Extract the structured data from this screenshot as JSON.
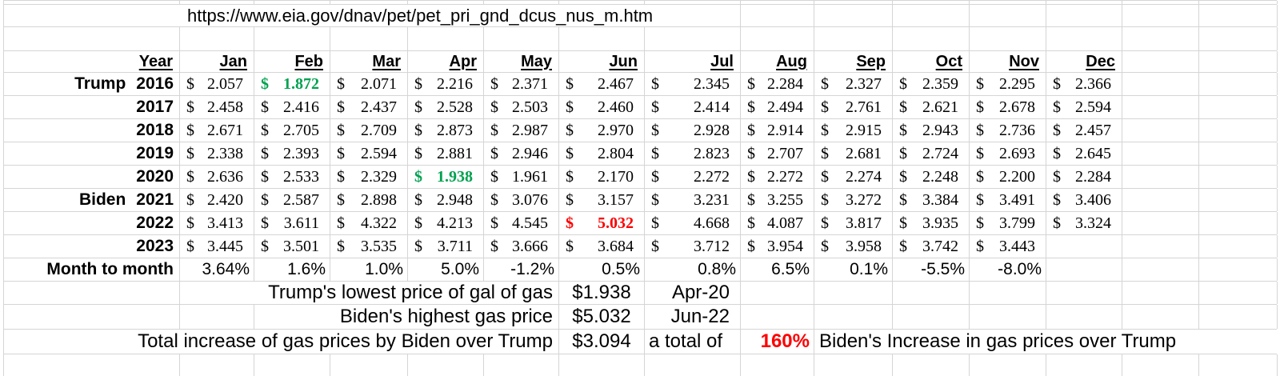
{
  "source_url": "https://www.eia.gov/dnav/pet/pet_pri_gnd_dcus_nus_m.htm",
  "colors": {
    "green": "#00A14F",
    "red": "#FD0000",
    "grid": "#D5D5D5"
  },
  "table": {
    "year_header": "Year",
    "currency_symbol": "$",
    "months": [
      "Jan",
      "Feb",
      "Mar",
      "Apr",
      "May",
      "Jun",
      "Jul",
      "Aug",
      "Sep",
      "Oct",
      "Nov",
      "Dec"
    ],
    "rows": [
      {
        "prefix": "Trump",
        "year": "2016",
        "values": [
          "2.057",
          "1.872",
          "2.071",
          "2.216",
          "2.371",
          "2.467",
          "2.345",
          "2.284",
          "2.327",
          "2.359",
          "2.295",
          "2.366"
        ],
        "highlight_index": 1,
        "highlight": "green"
      },
      {
        "prefix": "",
        "year": "2017",
        "values": [
          "2.458",
          "2.416",
          "2.437",
          "2.528",
          "2.503",
          "2.460",
          "2.414",
          "2.494",
          "2.761",
          "2.621",
          "2.678",
          "2.594"
        ]
      },
      {
        "prefix": "",
        "year": "2018",
        "values": [
          "2.671",
          "2.705",
          "2.709",
          "2.873",
          "2.987",
          "2.970",
          "2.928",
          "2.914",
          "2.915",
          "2.943",
          "2.736",
          "2.457"
        ]
      },
      {
        "prefix": "",
        "year": "2019",
        "values": [
          "2.338",
          "2.393",
          "2.594",
          "2.881",
          "2.946",
          "2.804",
          "2.823",
          "2.707",
          "2.681",
          "2.724",
          "2.693",
          "2.645"
        ]
      },
      {
        "prefix": "",
        "year": "2020",
        "values": [
          "2.636",
          "2.533",
          "2.329",
          "1.938",
          "1.961",
          "2.170",
          "2.272",
          "2.272",
          "2.274",
          "2.248",
          "2.200",
          "2.284"
        ],
        "highlight_index": 3,
        "highlight": "green"
      },
      {
        "prefix": "Biden",
        "year": "2021",
        "values": [
          "2.420",
          "2.587",
          "2.898",
          "2.948",
          "3.076",
          "3.157",
          "3.231",
          "3.255",
          "3.272",
          "3.384",
          "3.491",
          "3.406"
        ]
      },
      {
        "prefix": "",
        "year": "2022",
        "values": [
          "3.413",
          "3.611",
          "4.322",
          "4.213",
          "4.545",
          "5.032",
          "4.668",
          "4.087",
          "3.817",
          "3.935",
          "3.799",
          "3.324"
        ],
        "highlight_index": 5,
        "highlight": "red"
      },
      {
        "prefix": "",
        "year": "2023",
        "values": [
          "3.445",
          "3.501",
          "3.535",
          "3.711",
          "3.666",
          "3.684",
          "3.712",
          "3.954",
          "3.958",
          "3.742",
          "3.443",
          ""
        ]
      }
    ],
    "pct_row": {
      "label": "Month to month",
      "values": [
        "3.64%",
        "1.6%",
        "1.0%",
        "5.0%",
        "-1.2%",
        "0.5%",
        "0.8%",
        "6.5%",
        "0.1%",
        "-5.5%",
        "-8.0%",
        ""
      ]
    }
  },
  "summary": {
    "trump_lowest": {
      "label": "Trump's lowest price of gal of gas",
      "value": "$1.938",
      "date": "Apr-20"
    },
    "biden_highest": {
      "label": "Biden's highest gas price",
      "value": "$5.032",
      "date": "Jun-22"
    },
    "total_increase": {
      "label": "Total increase of gas prices by Biden over Trump",
      "value": "$3.094",
      "note": "a total of",
      "pct": "160%",
      "tail": "Biden's Increase in gas prices over Trump"
    }
  }
}
